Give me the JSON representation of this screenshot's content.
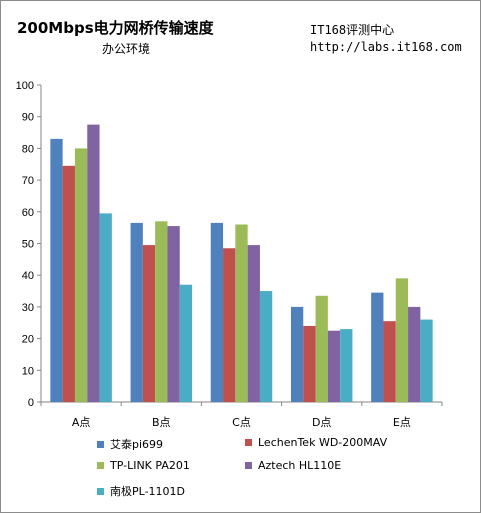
{
  "header": {
    "title": "200Mbps电力网桥传输速度",
    "subtitle": "办公环境",
    "source_line1": "IT168评测中心",
    "source_line2": "http://labs.it168.com"
  },
  "colors": {
    "series": [
      "#4f81bd",
      "#c0504d",
      "#9bbb59",
      "#8064a2",
      "#4bacc6"
    ]
  },
  "chart_data": {
    "type": "bar",
    "categories": [
      "A点",
      "B点",
      "C点",
      "D点",
      "E点"
    ],
    "series": [
      {
        "name": "艾泰pi699",
        "values": [
          83,
          56.5,
          56.5,
          30,
          34.5
        ]
      },
      {
        "name": "LechenTek WD-200MAV",
        "values": [
          74.5,
          49.5,
          48.5,
          24,
          25.5
        ]
      },
      {
        "name": "TP-LINK PA201",
        "values": [
          80,
          57,
          56,
          33.5,
          39
        ]
      },
      {
        "name": "Aztech HL110E",
        "values": [
          87.5,
          55.5,
          49.5,
          22.5,
          30
        ]
      },
      {
        "name": "南极PL-1101D",
        "values": [
          59.5,
          37,
          35,
          23,
          26
        ]
      }
    ],
    "yticks": [
      0,
      10,
      20,
      30,
      40,
      50,
      60,
      70,
      80,
      90,
      100
    ],
    "ylim": [
      0,
      100
    ],
    "grid": false,
    "legend_position": "bottom"
  }
}
